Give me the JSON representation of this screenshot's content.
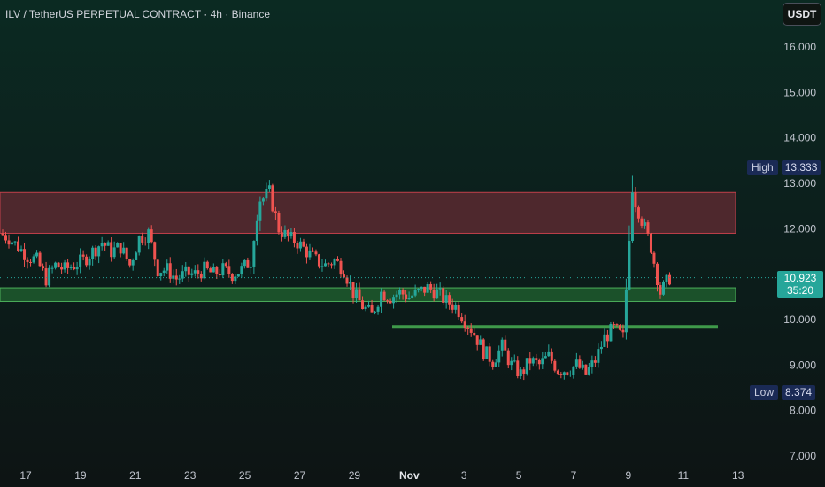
{
  "header": {
    "title": "ILV / TetherUS PERPETUAL CONTRACT · 4h · Binance",
    "currency": "USDT"
  },
  "price_axis": {
    "labels": [
      "16.000",
      "15.000",
      "14.000",
      "13.000",
      "12.000",
      "10.000",
      "9.000",
      "8.000",
      "7.000"
    ]
  },
  "time_axis": {
    "labels": [
      "17",
      "19",
      "21",
      "23",
      "25",
      "27",
      "29",
      "Nov",
      "3",
      "5",
      "7",
      "9",
      "11",
      "13"
    ]
  },
  "markers": {
    "high_label": "High",
    "high_value": "13.333",
    "low_label": "Low",
    "low_value": "8.374",
    "last_price": "10.923",
    "countdown": "35:20"
  },
  "colors": {
    "up": "#26a69a",
    "down": "#ef5350",
    "resistance_fill": "#5a2a30",
    "support_fill": "#1f5a2e",
    "support_line": "#3f9a4a"
  },
  "chart_data": {
    "type": "candlestick",
    "title": "ILV / TetherUS PERPETUAL CONTRACT · 4h · Binance",
    "ylim": [
      6.8,
      16.6
    ],
    "y_ticks": [
      16,
      15,
      14,
      13,
      12,
      10,
      9,
      8,
      7
    ],
    "x_ticks": [
      "17",
      "19",
      "21",
      "23",
      "25",
      "27",
      "29",
      "Nov",
      "3",
      "5",
      "7",
      "9",
      "11",
      "13"
    ],
    "zones": [
      {
        "kind": "resistance",
        "from": 11.9,
        "to": 12.8
      },
      {
        "kind": "support",
        "from": 10.4,
        "to": 10.7
      },
      {
        "kind": "level",
        "value": 9.85
      }
    ],
    "high": 13.333,
    "low": 8.374,
    "last": 10.923,
    "path": [
      11.9,
      11.8,
      11.6,
      11.4,
      11.3,
      10.9,
      11.2,
      11.1,
      11.2,
      11.3,
      11.5,
      11.7,
      11.5,
      11.6,
      11.2,
      11.8,
      11.9,
      11.1,
      11.1,
      10.9,
      11.0,
      11.0,
      11.1,
      11.0,
      11.1,
      11.0,
      11.1,
      11.3,
      12.6,
      12.8,
      12.0,
      11.8,
      11.7,
      11.5,
      11.3,
      11.2,
      11.3,
      11.1,
      10.6,
      10.3,
      10.1,
      10.6,
      10.5,
      10.6,
      10.5,
      10.6,
      10.7,
      10.6,
      10.4,
      10.3,
      10.0,
      9.7,
      9.3,
      9.1,
      9.4,
      9.0,
      8.8,
      9.1,
      9.0,
      9.2,
      8.9,
      8.9,
      9.0,
      8.8,
      9.1,
      9.6,
      9.8,
      9.6,
      12.8,
      12.2,
      11.6,
      10.6,
      10.923
    ]
  }
}
